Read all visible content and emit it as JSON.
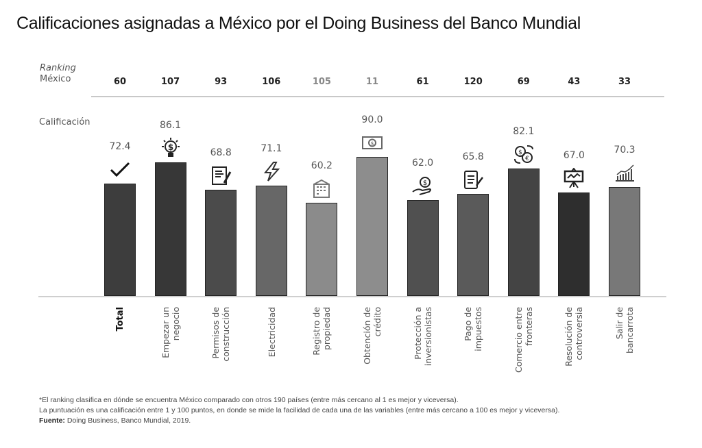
{
  "chart_data": {
    "type": "bar",
    "title": "Calificaciones asignadas a México por el Doing Business del Banco Mundial",
    "ranking_label_line1": "Ranking",
    "ranking_label_line2": "México",
    "value_label": "Calificación",
    "ylim": [
      0,
      100
    ],
    "categories": [
      {
        "lines": [
          "Total"
        ],
        "bold": true
      },
      {
        "lines": [
          "Empezar un",
          "negocio"
        ]
      },
      {
        "lines": [
          "Permisos de",
          "construcción"
        ]
      },
      {
        "lines": [
          "Electricidad"
        ]
      },
      {
        "lines": [
          "Registro de",
          "propiedad"
        ]
      },
      {
        "lines": [
          "Obtención de",
          "crédito"
        ]
      },
      {
        "lines": [
          "Protección a",
          "inversionistas"
        ]
      },
      {
        "lines": [
          "Pago de",
          "impuestos"
        ]
      },
      {
        "lines": [
          "Comercio entre",
          "fronteras"
        ]
      },
      {
        "lines": [
          "Resolución de",
          "controversia"
        ]
      },
      {
        "lines": [
          "Salir de",
          "bancarrota"
        ]
      }
    ],
    "values": [
      "72.4",
      "86.1",
      "68.8",
      "71.1",
      "60.2",
      "90.0",
      "62.0",
      "65.8",
      "82.1",
      "67.0",
      "70.3"
    ],
    "rankings": [
      "60",
      "107",
      "93",
      "106",
      "105",
      "11",
      "61",
      "120",
      "69",
      "43",
      "33"
    ],
    "ranking_light": [
      false,
      false,
      false,
      false,
      true,
      true,
      false,
      false,
      false,
      false,
      false
    ],
    "icons": [
      "check-icon",
      "lightbulb-dollar-icon",
      "document-pen-icon",
      "lightning-icon",
      "building-icon",
      "banknote-icon",
      "hand-coin-icon",
      "checklist-pen-icon",
      "currency-exchange-icon",
      "presentation-board-icon",
      "growth-chart-icon"
    ],
    "colors": [
      "#3d3d3d",
      "#373737",
      "#4b4b4b",
      "#676767",
      "#8b8b8b",
      "#8d8d8d",
      "#505050",
      "#5a5a5a",
      "#444444",
      "#2e2e2e",
      "#787878"
    ]
  },
  "notes": {
    "line1": "*El ranking clasifica en dónde se encuentra México comparado con otros 190 países (entre más cercano al 1 es mejor y viceversa).",
    "line2": "La puntuación es una calificación entre 1 y 100 puntos, en donde se mide la facilidad de cada una de las variables (entre más cercano a 100 es mejor y viceversa).",
    "source_label": "Fuente:",
    "source_text": " Doing Business, Banco Mundial, 2019."
  }
}
